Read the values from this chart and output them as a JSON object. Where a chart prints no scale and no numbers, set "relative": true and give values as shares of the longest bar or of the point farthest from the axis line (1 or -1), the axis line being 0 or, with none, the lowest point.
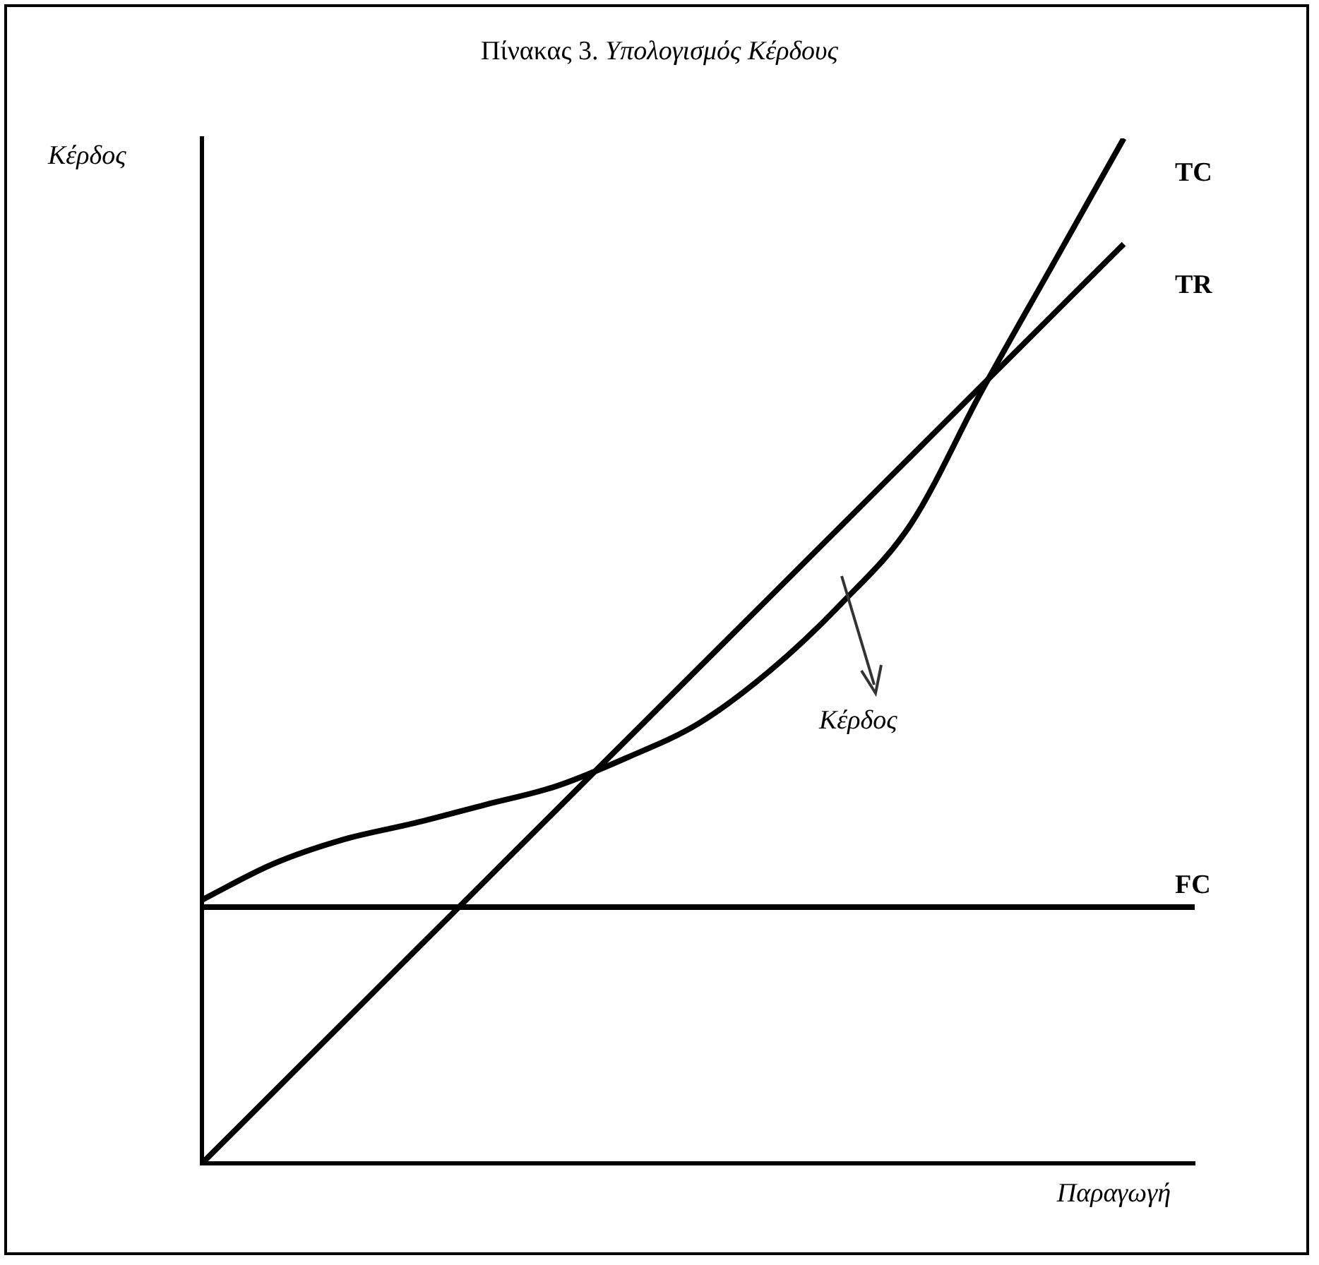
{
  "chart_data": {
    "type": "line",
    "title": "Πίνακας 3. Υπολογισμός Κέρδους",
    "xlabel": "Παραγωγή",
    "ylabel": "Κέρδος",
    "relative": true,
    "legend": false,
    "grid": false,
    "marker": "none",
    "line_style": "solid",
    "categories": [
      null,
      null,
      null,
      null,
      null,
      null,
      null,
      null,
      null,
      null,
      null,
      null,
      null,
      null,
      null
    ],
    "series": [
      {
        "name": "TC",
        "color": "#000000",
        "values": [
          0.257,
          0.292,
          0.316,
          0.332,
          0.35,
          0.368,
          0.396,
          0.429,
          0.48,
          0.545,
          0.624,
          0.754,
          0.877,
          1.0,
          null
        ]
      },
      {
        "name": "TR",
        "color": "#000000",
        "values": [
          0,
          0.069,
          0.138,
          0.207,
          0.276,
          0.345,
          0.414,
          0.483,
          0.552,
          0.621,
          0.69,
          0.759,
          0.828,
          0.897,
          null
        ]
      },
      {
        "name": "FC",
        "color": "#000000",
        "values": [
          0.25,
          0.25,
          0.25,
          0.25,
          0.25,
          0.25,
          0.25,
          0.25,
          0.25,
          0.25,
          0.25,
          0.25,
          0.25,
          0.25,
          0.25
        ]
      }
    ],
    "annotations": [
      "Κέρδος"
    ]
  }
}
